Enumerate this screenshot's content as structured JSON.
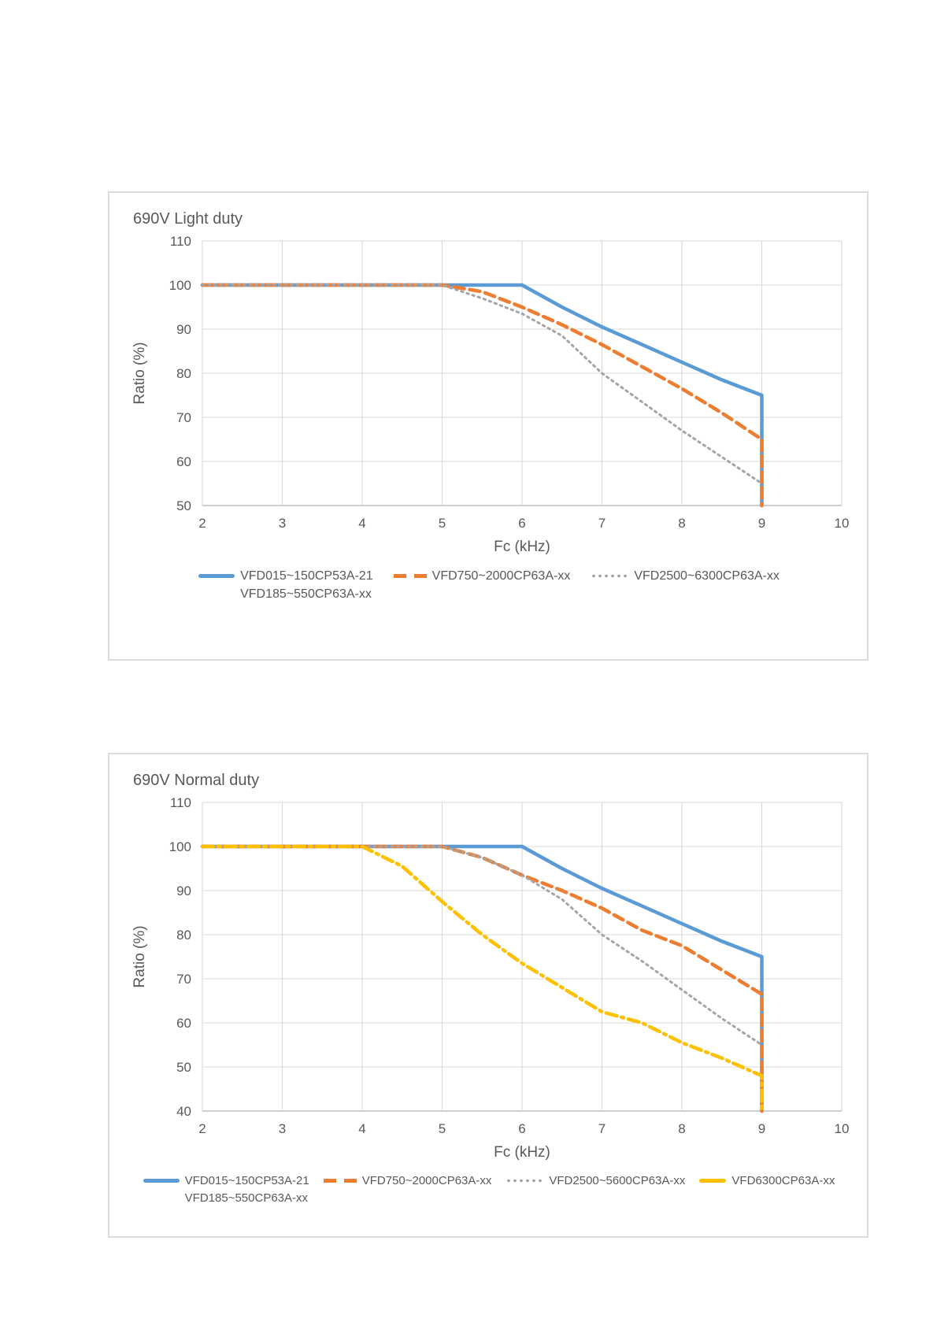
{
  "page": {
    "background": "#ffffff",
    "text_color": "#595959"
  },
  "chart_data": [
    {
      "type": "line",
      "title": "690V Light duty",
      "xlabel": "Fc (kHz)",
      "ylabel": "Ratio (%)",
      "xlim": [
        2,
        10
      ],
      "ylim": [
        50,
        110
      ],
      "xticks": [
        2,
        3,
        4,
        5,
        6,
        7,
        8,
        9,
        10
      ],
      "yticks": [
        50,
        60,
        70,
        80,
        90,
        100,
        110
      ],
      "grid": true,
      "legend_position": "bottom",
      "series": [
        {
          "legend_labels": [
            "VFD015~150CP53A-21",
            "VFD185~550CP63A-xx"
          ],
          "color": "#5B9BD5",
          "style": "solid",
          "stroke_width": 4.5,
          "dash": "",
          "points": [
            [
              2,
              100
            ],
            [
              5,
              100
            ],
            [
              6,
              100
            ],
            [
              6.5,
              95
            ],
            [
              7,
              90.5
            ],
            [
              7.5,
              86.5
            ],
            [
              8,
              82.5
            ],
            [
              8.5,
              78.5
            ],
            [
              9,
              75
            ],
            [
              9,
              50
            ]
          ]
        },
        {
          "legend_labels": [
            "VFD750~2000CP63A-xx"
          ],
          "color": "#ED7D31",
          "style": "dashed",
          "stroke_width": 4.5,
          "dash": "13 7",
          "points": [
            [
              2,
              100
            ],
            [
              5,
              100
            ],
            [
              5.5,
              98.5
            ],
            [
              6,
              95
            ],
            [
              6.5,
              91
            ],
            [
              7,
              86.5
            ],
            [
              7.5,
              81.5
            ],
            [
              8,
              76.5
            ],
            [
              8.5,
              71
            ],
            [
              9,
              65
            ],
            [
              9,
              50
            ]
          ]
        },
        {
          "legend_labels": [
            "VFD2500~6300CP63A-xx"
          ],
          "color": "#A5A5A5",
          "style": "dotted",
          "stroke_width": 3,
          "dash": "2.5 5",
          "points": [
            [
              2,
              100
            ],
            [
              5,
              100
            ],
            [
              5.5,
              97
            ],
            [
              6,
              93.5
            ],
            [
              6.5,
              88.5
            ],
            [
              7,
              80
            ],
            [
              7.5,
              73.5
            ],
            [
              8,
              67
            ],
            [
              8.5,
              61
            ],
            [
              9,
              55
            ]
          ]
        }
      ]
    },
    {
      "type": "line",
      "title": "690V Normal duty",
      "xlabel": "Fc (kHz)",
      "ylabel": "Ratio (%)",
      "xlim": [
        2,
        10
      ],
      "ylim": [
        40,
        110
      ],
      "xticks": [
        2,
        3,
        4,
        5,
        6,
        7,
        8,
        9,
        10
      ],
      "yticks": [
        40,
        50,
        60,
        70,
        80,
        90,
        100,
        110
      ],
      "grid": true,
      "legend_position": "bottom",
      "series": [
        {
          "legend_labels": [
            "VFD015~150CP53A-21",
            "VFD185~550CP63A-xx"
          ],
          "color": "#5B9BD5",
          "style": "solid",
          "stroke_width": 4.5,
          "dash": "",
          "points": [
            [
              2,
              100
            ],
            [
              5,
              100
            ],
            [
              6,
              100
            ],
            [
              6.5,
              95
            ],
            [
              7,
              90.5
            ],
            [
              7.5,
              86.5
            ],
            [
              8,
              82.5
            ],
            [
              8.5,
              78.5
            ],
            [
              9,
              75
            ],
            [
              9,
              40
            ]
          ]
        },
        {
          "legend_labels": [
            "VFD750~2000CP63A-xx"
          ],
          "color": "#ED7D31",
          "style": "dashed",
          "stroke_width": 4.5,
          "dash": "13 7",
          "points": [
            [
              2,
              100
            ],
            [
              5,
              100
            ],
            [
              5.5,
              97.5
            ],
            [
              6,
              93.5
            ],
            [
              6.5,
              90
            ],
            [
              7,
              86
            ],
            [
              7.5,
              81
            ],
            [
              8,
              77.5
            ],
            [
              8.5,
              72
            ],
            [
              9,
              66.5
            ],
            [
              9,
              40
            ]
          ]
        },
        {
          "legend_labels": [
            "VFD2500~5600CP63A-xx"
          ],
          "color": "#A5A5A5",
          "style": "dotted",
          "stroke_width": 3,
          "dash": "2.5 5",
          "points": [
            [
              2,
              100
            ],
            [
              5,
              100
            ],
            [
              5.5,
              97.5
            ],
            [
              6,
              93.5
            ],
            [
              6.5,
              88
            ],
            [
              7,
              80
            ],
            [
              7.5,
              74
            ],
            [
              8,
              67.5
            ],
            [
              8.5,
              61
            ],
            [
              9,
              55
            ]
          ]
        },
        {
          "legend_labels": [
            "VFD6300CP63A-xx"
          ],
          "color": "#FFC000",
          "style": "dashdot",
          "stroke_width": 4.5,
          "dash": "14 6 3 6",
          "points": [
            [
              2,
              100
            ],
            [
              4,
              100
            ],
            [
              4.5,
              95.5
            ],
            [
              5,
              87.5
            ],
            [
              5.5,
              80
            ],
            [
              6,
              73.5
            ],
            [
              6.5,
              68
            ],
            [
              7,
              62.5
            ],
            [
              7.5,
              60
            ],
            [
              8,
              55.5
            ],
            [
              8.5,
              52
            ],
            [
              9,
              48
            ],
            [
              9,
              40
            ]
          ]
        }
      ]
    }
  ],
  "style": {
    "gridline_color": "#D9D9D9",
    "axis_line_color": "#BFBFBF",
    "tick_label_color": "#595959",
    "tick_font_size": 17,
    "axis_label_font_size": 19
  }
}
